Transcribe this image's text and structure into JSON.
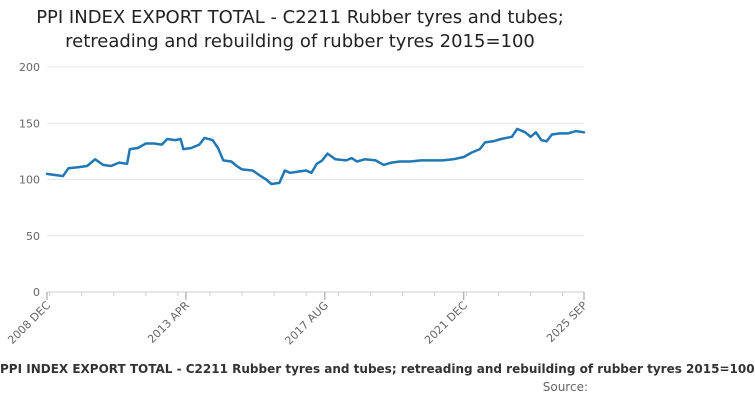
{
  "chart_data": {
    "type": "line",
    "title_lines": [
      "PPI INDEX EXPORT TOTAL - C2211 Rubber tyres and tubes;",
      "retreading and rebuilding of rubber tyres 2015=100"
    ],
    "xlabel": "",
    "ylabel": "",
    "ylim": [
      0,
      200
    ],
    "yticks": [
      0,
      50,
      100,
      150,
      200
    ],
    "x_tick_labels": [
      "2008 DEC",
      "2013 APR",
      "2017 AUG",
      "2021 DEC",
      "2025 SEP"
    ],
    "x_tick_dates": [
      "2008-12",
      "2013-04",
      "2017-08",
      "2021-12",
      "2025-09"
    ],
    "x_range": [
      "2008-12",
      "2025-09"
    ],
    "grid": "horizontal",
    "legend_position": "bottom",
    "line_color": "#1f77b4",
    "series": [
      {
        "name": "PPI INDEX EXPORT TOTAL - C2211 Rubber tyres and tubes; retreading and rebuilding of rubber tyres 2015=100",
        "points": [
          [
            "2008-12",
            105
          ],
          [
            "2009-03",
            104
          ],
          [
            "2009-06",
            103
          ],
          [
            "2009-08",
            110
          ],
          [
            "2009-12",
            111
          ],
          [
            "2010-03",
            112
          ],
          [
            "2010-06",
            118
          ],
          [
            "2010-09",
            113
          ],
          [
            "2010-12",
            112
          ],
          [
            "2011-03",
            115
          ],
          [
            "2011-06",
            114
          ],
          [
            "2011-07",
            127
          ],
          [
            "2011-10",
            128
          ],
          [
            "2012-01",
            132
          ],
          [
            "2012-04",
            132
          ],
          [
            "2012-07",
            131
          ],
          [
            "2012-09",
            136
          ],
          [
            "2012-12",
            135
          ],
          [
            "2013-02",
            136
          ],
          [
            "2013-03",
            127
          ],
          [
            "2013-06",
            128
          ],
          [
            "2013-09",
            131
          ],
          [
            "2013-11",
            137
          ],
          [
            "2014-02",
            135
          ],
          [
            "2014-04",
            128
          ],
          [
            "2014-06",
            117
          ],
          [
            "2014-09",
            116
          ],
          [
            "2014-11",
            112
          ],
          [
            "2015-01",
            109
          ],
          [
            "2015-05",
            108
          ],
          [
            "2015-08",
            103
          ],
          [
            "2015-10",
            100
          ],
          [
            "2015-12",
            96
          ],
          [
            "2016-03",
            97
          ],
          [
            "2016-05",
            108
          ],
          [
            "2016-07",
            106
          ],
          [
            "2016-10",
            107
          ],
          [
            "2017-01",
            108
          ],
          [
            "2017-03",
            106
          ],
          [
            "2017-05",
            114
          ],
          [
            "2017-07",
            117
          ],
          [
            "2017-09",
            123
          ],
          [
            "2017-12",
            118
          ],
          [
            "2018-04",
            117
          ],
          [
            "2018-06",
            119
          ],
          [
            "2018-08",
            116
          ],
          [
            "2018-11",
            118
          ],
          [
            "2019-03",
            117
          ],
          [
            "2019-06",
            113
          ],
          [
            "2019-09",
            115
          ],
          [
            "2019-12",
            116
          ],
          [
            "2020-04",
            116
          ],
          [
            "2020-08",
            117
          ],
          [
            "2020-12",
            117
          ],
          [
            "2021-04",
            117
          ],
          [
            "2021-08",
            118
          ],
          [
            "2021-12",
            120
          ],
          [
            "2022-03",
            124
          ],
          [
            "2022-06",
            127
          ],
          [
            "2022-08",
            133
          ],
          [
            "2022-11",
            134
          ],
          [
            "2023-02",
            136
          ],
          [
            "2023-06",
            138
          ],
          [
            "2023-08",
            145
          ],
          [
            "2023-11",
            142
          ],
          [
            "2024-01",
            138
          ],
          [
            "2024-03",
            142
          ],
          [
            "2024-05",
            135
          ],
          [
            "2024-07",
            134
          ],
          [
            "2024-09",
            140
          ],
          [
            "2024-12",
            141
          ],
          [
            "2025-03",
            141
          ],
          [
            "2025-06",
            143
          ],
          [
            "2025-09",
            142
          ]
        ]
      }
    ],
    "source_label": "Source:"
  }
}
